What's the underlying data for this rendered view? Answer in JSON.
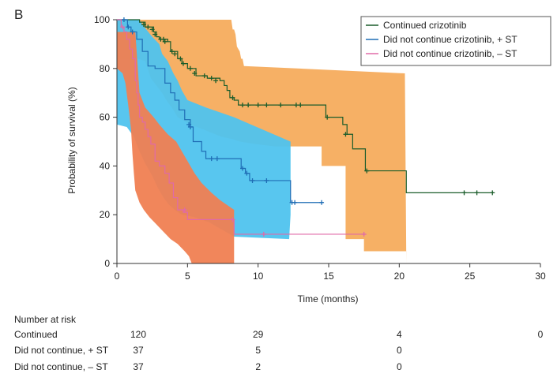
{
  "panel_label": "B",
  "colors": {
    "continued": "#1a5c2a",
    "st_plus": "#1f6db5",
    "st_minus": "#e06aa8",
    "band_continued": "#f4a24a",
    "band_st_plus": "#4fc3ee",
    "band_st_minus": "#f07f52"
  },
  "chart_data": {
    "type": "line",
    "subtype": "kaplan-meier",
    "title": "",
    "xlabel": "Time (months)",
    "ylabel": "Probability of survival (%)",
    "xlim": [
      0,
      30
    ],
    "ylim": [
      0,
      100
    ],
    "xticks": [
      0,
      5,
      10,
      15,
      20,
      25,
      30
    ],
    "yticks": [
      0,
      20,
      40,
      60,
      80,
      100
    ],
    "legend_position": "top-right",
    "series": [
      {
        "key": "continued",
        "name": "Continued crizotinib",
        "color": "#1a5c2a",
        "step": [
          [
            0,
            100
          ],
          [
            1.5,
            100
          ],
          [
            1.6,
            99
          ],
          [
            2.0,
            97
          ],
          [
            2.6,
            95
          ],
          [
            2.8,
            93
          ],
          [
            3.0,
            92
          ],
          [
            3.6,
            91
          ],
          [
            3.8,
            87
          ],
          [
            4.3,
            84
          ],
          [
            4.6,
            82
          ],
          [
            5.0,
            80
          ],
          [
            5.6,
            77
          ],
          [
            6.4,
            76
          ],
          [
            7.3,
            75
          ],
          [
            7.6,
            73
          ],
          [
            7.8,
            71
          ],
          [
            8.0,
            68
          ],
          [
            8.3,
            67
          ],
          [
            8.6,
            65
          ],
          [
            13.2,
            65
          ],
          [
            14.8,
            60
          ],
          [
            16.0,
            57
          ],
          [
            16.3,
            53
          ],
          [
            16.7,
            47
          ],
          [
            17.6,
            38
          ],
          [
            20.5,
            29
          ],
          [
            26.7,
            29
          ]
        ],
        "censor": [
          [
            1.9,
            98
          ],
          [
            2.2,
            97
          ],
          [
            2.5,
            96
          ],
          [
            2.7,
            94
          ],
          [
            3.1,
            92
          ],
          [
            3.3,
            92
          ],
          [
            3.4,
            91
          ],
          [
            3.9,
            87
          ],
          [
            4.1,
            86
          ],
          [
            4.5,
            84
          ],
          [
            4.7,
            82
          ],
          [
            5.2,
            80
          ],
          [
            5.5,
            78
          ],
          [
            6.2,
            77
          ],
          [
            6.7,
            76
          ],
          [
            7.0,
            75
          ],
          [
            8.2,
            68
          ],
          [
            8.9,
            65
          ],
          [
            9.3,
            65
          ],
          [
            10.0,
            65
          ],
          [
            10.6,
            65
          ],
          [
            11.6,
            65
          ],
          [
            12.7,
            65
          ],
          [
            13.0,
            65
          ],
          [
            14.9,
            60
          ],
          [
            16.2,
            53
          ],
          [
            17.7,
            38
          ],
          [
            24.6,
            29
          ],
          [
            25.5,
            29
          ],
          [
            26.6,
            29
          ]
        ]
      },
      {
        "key": "st_plus",
        "name": "Did not continue crizotinib, + ST",
        "color": "#1f6db5",
        "step": [
          [
            0,
            100
          ],
          [
            0.7,
            100
          ],
          [
            0.75,
            97
          ],
          [
            1.0,
            95
          ],
          [
            1.4,
            92
          ],
          [
            1.8,
            87
          ],
          [
            2.2,
            81
          ],
          [
            2.7,
            80
          ],
          [
            3.4,
            74
          ],
          [
            3.8,
            70
          ],
          [
            4.1,
            67
          ],
          [
            4.4,
            63
          ],
          [
            4.8,
            59
          ],
          [
            5.2,
            56
          ],
          [
            5.4,
            50
          ],
          [
            6.0,
            46
          ],
          [
            6.3,
            43
          ],
          [
            8.8,
            39
          ],
          [
            9.1,
            37
          ],
          [
            9.4,
            34
          ],
          [
            12.3,
            25
          ],
          [
            14.6,
            25
          ]
        ],
        "censor": [
          [
            0.5,
            100
          ],
          [
            0.8,
            97
          ],
          [
            1.1,
            95
          ],
          [
            5.1,
            57
          ],
          [
            5.2,
            56
          ],
          [
            6.7,
            43
          ],
          [
            7.1,
            43
          ],
          [
            8.9,
            39
          ],
          [
            9.2,
            37
          ],
          [
            9.6,
            34
          ],
          [
            10.6,
            34
          ],
          [
            12.4,
            25
          ],
          [
            12.6,
            25
          ],
          [
            14.5,
            25
          ]
        ]
      },
      {
        "key": "st_minus",
        "name": "Did not continue crizotinib, – ST",
        "color": "#e06aa8",
        "step": [
          [
            0,
            100
          ],
          [
            0.3,
            97
          ],
          [
            0.5,
            95
          ],
          [
            0.7,
            92
          ],
          [
            0.9,
            88
          ],
          [
            1.1,
            84
          ],
          [
            1.3,
            75
          ],
          [
            1.4,
            70
          ],
          [
            1.5,
            65
          ],
          [
            1.6,
            60
          ],
          [
            1.8,
            58
          ],
          [
            2.0,
            55
          ],
          [
            2.2,
            52
          ],
          [
            2.4,
            49
          ],
          [
            2.7,
            42
          ],
          [
            3.0,
            40
          ],
          [
            3.4,
            37
          ],
          [
            3.7,
            33
          ],
          [
            4.0,
            27
          ],
          [
            4.3,
            22
          ],
          [
            4.7,
            21
          ],
          [
            5.0,
            18
          ],
          [
            8.3,
            12
          ],
          [
            17.5,
            12
          ]
        ],
        "censor": [
          [
            0.4,
            97
          ],
          [
            4.8,
            22
          ],
          [
            8.2,
            18
          ],
          [
            10.4,
            12
          ],
          [
            17.5,
            12
          ]
        ]
      }
    ],
    "bands": [
      {
        "key": "band_continued",
        "color": "#f4a24a",
        "opacity": 0.85,
        "upper": [
          [
            0,
            100
          ],
          [
            8.1,
            100
          ],
          [
            8.2,
            96
          ],
          [
            8.3,
            96
          ],
          [
            8.4,
            94
          ],
          [
            8.5,
            89
          ],
          [
            8.6,
            88
          ],
          [
            8.7,
            87
          ],
          [
            8.8,
            84
          ],
          [
            8.9,
            84
          ],
          [
            9.0,
            81
          ],
          [
            20.4,
            78
          ]
        ],
        "lower": [
          [
            0,
            84
          ],
          [
            1.5,
            84
          ],
          [
            2.0,
            83
          ],
          [
            2.4,
            76
          ],
          [
            2.8,
            73
          ],
          [
            3.2,
            70
          ],
          [
            3.5,
            67
          ],
          [
            4.0,
            63
          ],
          [
            4.3,
            60
          ],
          [
            5.2,
            57
          ],
          [
            6.1,
            55
          ],
          [
            7.4,
            52
          ],
          [
            8.2,
            51
          ],
          [
            8.7,
            50
          ],
          [
            9.8,
            49
          ],
          [
            11.2,
            48
          ],
          [
            14.5,
            48
          ],
          [
            14.5,
            40
          ],
          [
            16.2,
            40
          ],
          [
            16.2,
            10
          ],
          [
            17.5,
            10
          ],
          [
            17.5,
            5
          ],
          [
            20.5,
            5
          ],
          [
            20.5,
            0
          ]
        ]
      },
      {
        "key": "band_st_plus",
        "color": "#4fc3ee",
        "opacity": 0.95,
        "upper": [
          [
            0,
            100
          ],
          [
            1.6,
            100
          ],
          [
            1.8,
            98
          ],
          [
            2.5,
            93
          ],
          [
            3.0,
            90
          ],
          [
            3.2,
            86
          ],
          [
            3.6,
            83
          ],
          [
            4.0,
            78
          ],
          [
            4.3,
            75
          ],
          [
            4.6,
            71
          ],
          [
            5.0,
            67
          ],
          [
            6.3,
            64
          ],
          [
            8.3,
            60
          ],
          [
            12.3,
            50
          ],
          [
            12.3,
            20
          ]
        ],
        "lower": [
          [
            0,
            57
          ],
          [
            0.7,
            56
          ],
          [
            1.2,
            52
          ],
          [
            1.6,
            46
          ],
          [
            2.0,
            41
          ],
          [
            2.5,
            36
          ],
          [
            2.9,
            31
          ],
          [
            3.3,
            27
          ],
          [
            3.7,
            24
          ],
          [
            4.1,
            22
          ],
          [
            4.6,
            20
          ],
          [
            5.5,
            19
          ],
          [
            6.5,
            17
          ],
          [
            8.3,
            11
          ],
          [
            12.2,
            10
          ]
        ]
      },
      {
        "key": "band_st_minus",
        "color": "#f07f52",
        "opacity": 0.95,
        "upper": [
          [
            0,
            95
          ],
          [
            1.3,
            95
          ],
          [
            1.6,
            70
          ],
          [
            2.0,
            64
          ],
          [
            2.6,
            60
          ],
          [
            3.0,
            57
          ],
          [
            3.6,
            53
          ],
          [
            4.2,
            50
          ],
          [
            4.7,
            45
          ],
          [
            5.1,
            41
          ],
          [
            5.5,
            37
          ],
          [
            6.0,
            33
          ],
          [
            6.7,
            29
          ],
          [
            7.3,
            26
          ],
          [
            8.3,
            22
          ],
          [
            8.3,
            0
          ]
        ],
        "lower": [
          [
            0,
            80
          ],
          [
            0.4,
            78
          ],
          [
            0.6,
            74
          ],
          [
            0.8,
            65
          ],
          [
            1.0,
            55
          ],
          [
            1.1,
            45
          ],
          [
            1.2,
            37
          ],
          [
            1.3,
            30
          ],
          [
            1.6,
            25
          ],
          [
            1.9,
            22
          ],
          [
            2.3,
            19
          ],
          [
            2.8,
            16
          ],
          [
            3.3,
            13
          ],
          [
            3.8,
            10
          ],
          [
            4.3,
            8
          ],
          [
            4.8,
            5
          ],
          [
            5.1,
            3
          ],
          [
            5.3,
            0
          ]
        ]
      }
    ]
  },
  "risk_table": {
    "title": "Number at risk",
    "times": [
      0,
      10,
      20,
      30
    ],
    "rows": [
      {
        "label": "Continued",
        "values": [
          "120",
          "29",
          "4",
          "0"
        ]
      },
      {
        "label": "Did not continue, + ST",
        "values": [
          "37",
          "5",
          "0",
          ""
        ]
      },
      {
        "label": "Did not continue, – ST",
        "values": [
          "37",
          "2",
          "0",
          ""
        ]
      }
    ]
  }
}
